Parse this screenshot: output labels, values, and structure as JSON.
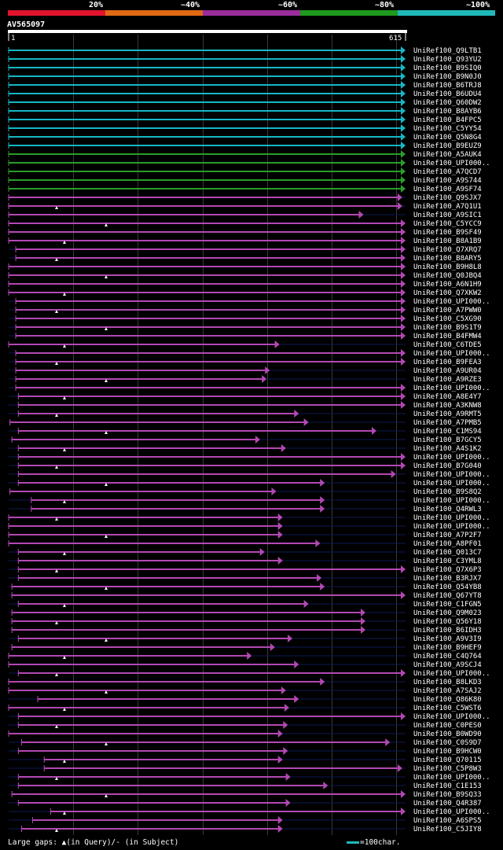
{
  "legend": [
    {
      "label": "20%",
      "color": "#e0142d"
    },
    {
      "label": "~40%",
      "color": "#e06a14"
    },
    {
      "label": "~60%",
      "color": "#9b2d9b"
    },
    {
      "label": "~80%",
      "color": "#1f9a1f"
    },
    {
      "label": "~100%",
      "color": "#1fb8b8"
    }
  ],
  "query": {
    "name": "AV565097",
    "start": "1",
    "end": "615"
  },
  "footer": {
    "text": "Large gaps: ▲(in Query)/- (in Subject)",
    "scale_label": "=100char.",
    "scale_color": "#1fb8b8"
  },
  "hit_colors": {
    "c": "#16b7c5",
    "g": "#2a9d2a",
    "m": "#b348b3",
    "grid": "#3a3a3a",
    "axis": "#ffffff",
    "gap": "#ffffff"
  },
  "hits": [
    {
      "name": "UniRef100_Q9LTB1",
      "c": "c",
      "s": 1,
      "e": 615
    },
    {
      "name": "UniRef100_Q93YU2",
      "c": "c",
      "s": 1,
      "e": 615
    },
    {
      "name": "UniRef100_B9SIQ0",
      "c": "c",
      "s": 1,
      "e": 615
    },
    {
      "name": "UniRef100_B9N0J0",
      "c": "c",
      "s": 1,
      "e": 615
    },
    {
      "name": "UniRef100_B6TRJ8",
      "c": "c",
      "s": 1,
      "e": 615
    },
    {
      "name": "UniRef100_B6UDU4",
      "c": "c",
      "s": 1,
      "e": 615
    },
    {
      "name": "UniRef100_Q60DW2",
      "c": "c",
      "s": 1,
      "e": 615
    },
    {
      "name": "UniRef100_B8AYB6",
      "c": "c",
      "s": 1,
      "e": 615
    },
    {
      "name": "UniRef100_B4FPC5",
      "c": "c",
      "s": 1,
      "e": 615
    },
    {
      "name": "UniRef100_C5YY54",
      "c": "c",
      "s": 1,
      "e": 615
    },
    {
      "name": "UniRef100_Q5N8G4",
      "c": "c",
      "s": 1,
      "e": 615
    },
    {
      "name": "UniRef100_B9EUZ9",
      "c": "c",
      "s": 1,
      "e": 615
    },
    {
      "name": "UniRef100_A5AUK4",
      "c": "g",
      "s": 1,
      "e": 615
    },
    {
      "name": "UniRef100_UPI000..",
      "c": "g",
      "s": 1,
      "e": 615
    },
    {
      "name": "UniRef100_A7QCD7",
      "c": "g",
      "s": 1,
      "e": 615
    },
    {
      "name": "UniRef100_A9S744",
      "c": "g",
      "s": 1,
      "e": 615
    },
    {
      "name": "UniRef100_A9SF74",
      "c": "g",
      "s": 1,
      "e": 615
    },
    {
      "name": "UniRef100_Q9SJX7",
      "c": "m",
      "s": 1,
      "e": 610
    },
    {
      "name": "UniRef100_A7Q1U1",
      "c": "m",
      "s": 1,
      "e": 610
    },
    {
      "name": "UniRef100_A9SIC1",
      "c": "m",
      "s": 1,
      "e": 550
    },
    {
      "name": "UniRef100_C5YCC9",
      "c": "m",
      "s": 1,
      "e": 615
    },
    {
      "name": "UniRef100_B9SF49",
      "c": "m",
      "s": 1,
      "e": 615
    },
    {
      "name": "UniRef100_B8A1B9",
      "c": "m",
      "s": 1,
      "e": 615
    },
    {
      "name": "UniRef100_Q7XRQ7",
      "c": "m",
      "s": 12,
      "e": 615
    },
    {
      "name": "UniRef100_B8ARY5",
      "c": "m",
      "s": 12,
      "e": 615
    },
    {
      "name": "UniRef100_B9H8L8",
      "c": "m",
      "s": 1,
      "e": 615
    },
    {
      "name": "UniRef100_Q0JBQ4",
      "c": "m",
      "s": 1,
      "e": 615
    },
    {
      "name": "UniRef100_A6N1H9",
      "c": "m",
      "s": 1,
      "e": 615
    },
    {
      "name": "UniRef100_Q7XKW2",
      "c": "m",
      "s": 1,
      "e": 615
    },
    {
      "name": "UniRef100_UPI000..",
      "c": "m",
      "s": 12,
      "e": 615
    },
    {
      "name": "UniRef100_A7PWW0",
      "c": "m",
      "s": 12,
      "e": 615
    },
    {
      "name": "UniRef100_C5XG90",
      "c": "m",
      "s": 12,
      "e": 615
    },
    {
      "name": "UniRef100_B9S1T9",
      "c": "m",
      "s": 12,
      "e": 615
    },
    {
      "name": "UniRef100_B4FMW4",
      "c": "m",
      "s": 12,
      "e": 615
    },
    {
      "name": "UniRef100_C6TDE5",
      "c": "m",
      "s": 1,
      "e": 420
    },
    {
      "name": "UniRef100_UPI000..",
      "c": "m",
      "s": 12,
      "e": 615
    },
    {
      "name": "UniRef100_B9FEA3",
      "c": "m",
      "s": 12,
      "e": 615
    },
    {
      "name": "UniRef100_A9UR04",
      "c": "m",
      "s": 12,
      "e": 405
    },
    {
      "name": "UniRef100_A9RZE3",
      "c": "m",
      "s": 12,
      "e": 400
    },
    {
      "name": "UniRef100_UPI000..",
      "c": "m",
      "s": 12,
      "e": 615
    },
    {
      "name": "UniRef100_A8E4Y7",
      "c": "m",
      "s": 16,
      "e": 615
    },
    {
      "name": "UniRef100_A3KNW8",
      "c": "m",
      "s": 16,
      "e": 615
    },
    {
      "name": "UniRef100_A9RMT5",
      "c": "m",
      "s": 16,
      "e": 450
    },
    {
      "name": "UniRef100_A7PMB5",
      "c": "m",
      "s": 3,
      "e": 465
    },
    {
      "name": "UniRef100_C1MS94",
      "c": "m",
      "s": 16,
      "e": 570
    },
    {
      "name": "UniRef100_B7GCY5",
      "c": "m",
      "s": 6,
      "e": 390
    },
    {
      "name": "UniRef100_A4S1K2",
      "c": "m",
      "s": 16,
      "e": 430
    },
    {
      "name": "UniRef100_UPI000..",
      "c": "m",
      "s": 16,
      "e": 615
    },
    {
      "name": "UniRef100_B7G040",
      "c": "m",
      "s": 16,
      "e": 615
    },
    {
      "name": "UniRef100_UPI000..",
      "c": "m",
      "s": 16,
      "e": 600
    },
    {
      "name": "UniRef100_UPI000..",
      "c": "m",
      "s": 16,
      "e": 490
    },
    {
      "name": "UniRef100_B9S8Q2",
      "c": "m",
      "s": 3,
      "e": 415
    },
    {
      "name": "UniRef100_UPI000..",
      "c": "m",
      "s": 36,
      "e": 490
    },
    {
      "name": "UniRef100_Q4RWL3",
      "c": "m",
      "s": 36,
      "e": 490
    },
    {
      "name": "UniRef100_UPI000..",
      "c": "m",
      "s": 1,
      "e": 425
    },
    {
      "name": "UniRef100_UPI000..",
      "c": "m",
      "s": 1,
      "e": 425
    },
    {
      "name": "UniRef100_A7P2F7",
      "c": "m",
      "s": 1,
      "e": 425
    },
    {
      "name": "UniRef100_A8PF01",
      "c": "m",
      "s": 1,
      "e": 483
    },
    {
      "name": "UniRef100_Q013C7",
      "c": "m",
      "s": 16,
      "e": 397
    },
    {
      "name": "UniRef100_C3YML8",
      "c": "m",
      "s": 16,
      "e": 425
    },
    {
      "name": "UniRef100_Q7X6P3",
      "c": "m",
      "s": 16,
      "e": 615
    },
    {
      "name": "UniRef100_B3RJX7",
      "c": "m",
      "s": 16,
      "e": 485
    },
    {
      "name": "UniRef100_Q54YB8",
      "c": "m",
      "s": 6,
      "e": 490
    },
    {
      "name": "UniRef100_Q67YT8",
      "c": "m",
      "s": 6,
      "e": 615
    },
    {
      "name": "UniRef100_C1FGN5",
      "c": "m",
      "s": 16,
      "e": 465
    },
    {
      "name": "UniRef100_Q9M023",
      "c": "m",
      "s": 6,
      "e": 553
    },
    {
      "name": "UniRef100_Q56Y18",
      "c": "m",
      "s": 6,
      "e": 553
    },
    {
      "name": "UniRef100_B6IDH3",
      "c": "m",
      "s": 6,
      "e": 553
    },
    {
      "name": "UniRef100_A9V3I9",
      "c": "m",
      "s": 16,
      "e": 440
    },
    {
      "name": "UniRef100_B9HEF9",
      "c": "m",
      "s": 6,
      "e": 413
    },
    {
      "name": "UniRef100_C4Q764",
      "c": "m",
      "s": 1,
      "e": 377
    },
    {
      "name": "UniRef100_A9SCJ4",
      "c": "m",
      "s": 1,
      "e": 450
    },
    {
      "name": "UniRef100_UPI000..",
      "c": "m",
      "s": 16,
      "e": 615
    },
    {
      "name": "UniRef100_B8LKD3",
      "c": "m",
      "s": 1,
      "e": 490
    },
    {
      "name": "UniRef100_A7SAJ2",
      "c": "m",
      "s": 1,
      "e": 430
    },
    {
      "name": "UniRef100_Q86K80",
      "c": "m",
      "s": 46,
      "e": 450
    },
    {
      "name": "UniRef100_C5WST6",
      "c": "m",
      "s": 1,
      "e": 435
    },
    {
      "name": "UniRef100_UPI000..",
      "c": "m",
      "s": 16,
      "e": 615
    },
    {
      "name": "UniRef100_C0PES0",
      "c": "m",
      "s": 16,
      "e": 433
    },
    {
      "name": "UniRef100_B0WD90",
      "c": "m",
      "s": 1,
      "e": 425
    },
    {
      "name": "UniRef100_C0S9D7",
      "c": "m",
      "s": 21,
      "e": 591
    },
    {
      "name": "UniRef100_B9HCW0",
      "c": "m",
      "s": 16,
      "e": 433
    },
    {
      "name": "UniRef100_Q70115",
      "c": "m",
      "s": 56,
      "e": 425
    },
    {
      "name": "UniRef100_C5P8W3",
      "c": "m",
      "s": 56,
      "e": 610
    },
    {
      "name": "UniRef100_UPI000..",
      "c": "m",
      "s": 16,
      "e": 437
    },
    {
      "name": "UniRef100_C1E153",
      "c": "m",
      "s": 16,
      "e": 495
    },
    {
      "name": "UniRef100_B9SQ33",
      "c": "m",
      "s": 6,
      "e": 615
    },
    {
      "name": "UniRef100_Q4R387",
      "c": "m",
      "s": 16,
      "e": 437
    },
    {
      "name": "UniRef100_UPI000..",
      "c": "m",
      "s": 66,
      "e": 615
    },
    {
      "name": "UniRef100_A6SPS5",
      "c": "m",
      "s": 38,
      "e": 425
    },
    {
      "name": "UniRef100_C5JIY8",
      "c": "m",
      "s": 21,
      "e": 425
    }
  ]
}
